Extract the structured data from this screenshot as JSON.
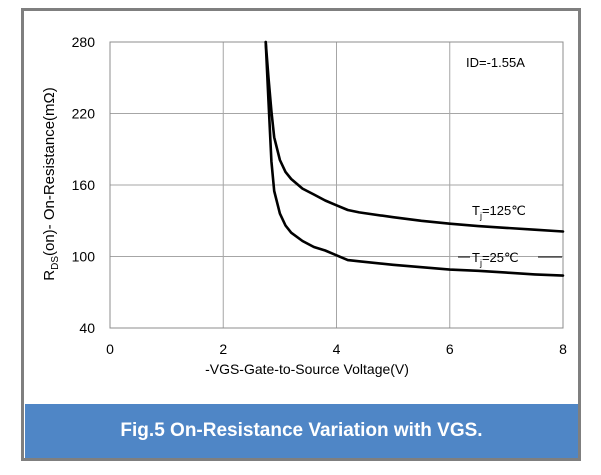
{
  "caption": "Fig.5 On-Resistance Variation with VGS.",
  "chart_data": {
    "type": "line",
    "title": "",
    "xlabel": "-VGS-Gate-to-Source  Voltage(V)",
    "ylabel": {
      "main": "R",
      "sub": "DS",
      "rest": "(on)- On-Resistance(mΩ)"
    },
    "xlim": [
      0,
      8
    ],
    "ylim": [
      40,
      280
    ],
    "xticks": [
      0,
      2,
      4,
      6,
      8
    ],
    "yticks": [
      40,
      100,
      160,
      220,
      280
    ],
    "grid": true,
    "annotations": [
      {
        "id": "id",
        "text": "ID=-1.55A"
      }
    ],
    "series": [
      {
        "name": "Tj=125℃",
        "label": {
          "pre": "T",
          "sub": "j",
          "post": "=125℃"
        },
        "x": [
          2.75,
          2.8,
          2.85,
          2.9,
          3.0,
          3.1,
          3.2,
          3.4,
          3.6,
          3.8,
          4.0,
          4.2,
          4.4,
          5.0,
          5.5,
          6.0,
          6.5,
          7.0,
          7.5,
          8.0
        ],
        "y": [
          280,
          250,
          222,
          200,
          181,
          171,
          165,
          157,
          152,
          147,
          143,
          139,
          137,
          133,
          130,
          127.5,
          125.5,
          124,
          122.5,
          121
        ]
      },
      {
        "name": "Tj=25℃",
        "label": {
          "pre": "T",
          "sub": "j",
          "post": "=25℃"
        },
        "x": [
          2.75,
          2.8,
          2.85,
          2.9,
          3.0,
          3.1,
          3.2,
          3.4,
          3.6,
          3.8,
          4.0,
          4.2,
          4.4,
          5.0,
          5.5,
          6.0,
          6.5,
          7.0,
          7.5,
          8.0
        ],
        "y": [
          280,
          230,
          180,
          155,
          136,
          126,
          120,
          113,
          108,
          105,
          101,
          97,
          96,
          93,
          91,
          89,
          88,
          86.5,
          85,
          84
        ]
      }
    ]
  }
}
